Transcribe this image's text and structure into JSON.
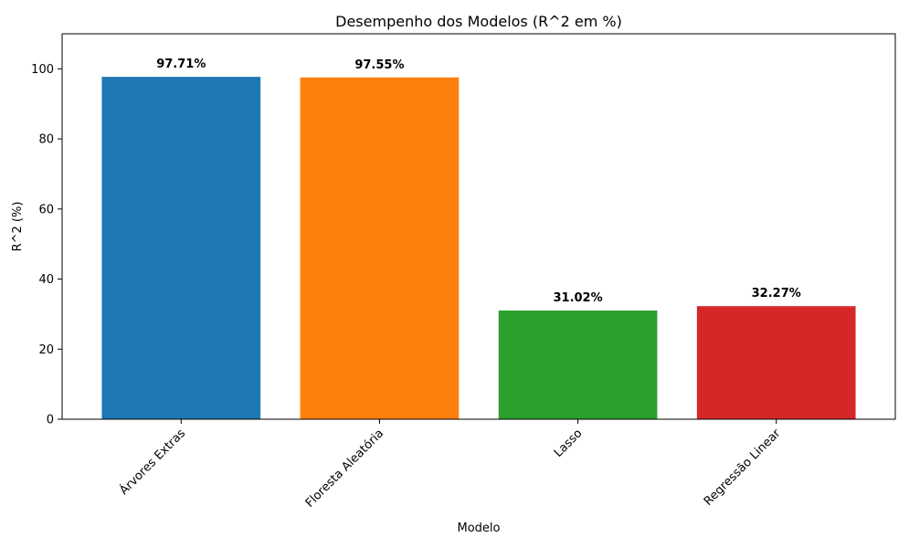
{
  "chart_data": {
    "type": "bar",
    "title": "Desempenho dos Modelos (R^2 em %)",
    "xlabel": "Modelo",
    "ylabel": "R^2 (%)",
    "categories": [
      "Árvores Extras",
      "Floresta Aleatória",
      "Lasso",
      "Regressão Linear"
    ],
    "values": [
      97.71,
      97.55,
      31.02,
      32.27
    ],
    "value_labels": [
      "97.71%",
      "97.55%",
      "31.02%",
      "32.27%"
    ],
    "colors": [
      "#1f77b4",
      "#ff7f0e",
      "#2ca02c",
      "#d62728"
    ],
    "ylim": [
      0,
      110
    ],
    "yticks": [
      0,
      20,
      40,
      60,
      80,
      100
    ],
    "x_tick_rotation": 45,
    "grid": false,
    "legend": "none"
  }
}
